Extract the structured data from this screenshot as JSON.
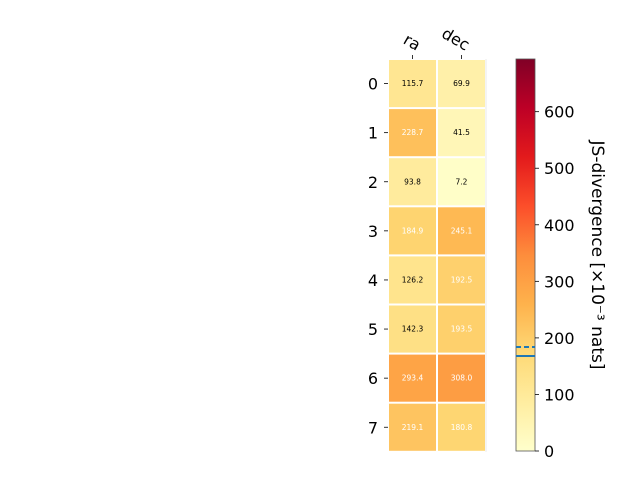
{
  "chart_data": {
    "type": "heatmap",
    "columns": [
      "ra",
      "dec"
    ],
    "rows": [
      "0",
      "1",
      "2",
      "3",
      "4",
      "5",
      "6",
      "7"
    ],
    "values": [
      [
        115.7,
        69.9
      ],
      [
        228.7,
        41.5
      ],
      [
        93.8,
        7.2
      ],
      [
        184.9,
        245.1
      ],
      [
        126.2,
        192.5
      ],
      [
        142.3,
        193.5
      ],
      [
        293.4,
        308.0
      ],
      [
        219.1,
        180.8
      ]
    ],
    "value_labels": [
      [
        "115.7",
        "69.9"
      ],
      [
        "228.7",
        "41.5"
      ],
      [
        "93.8",
        "7.2"
      ],
      [
        "184.9",
        "245.1"
      ],
      [
        "126.2",
        "192.5"
      ],
      [
        "142.3",
        "193.5"
      ],
      [
        "293.4",
        "308.0"
      ],
      [
        "219.1",
        "180.8"
      ]
    ],
    "colorbar": {
      "label": "JS-divergence [×10⁻³ nats]",
      "ticks": [
        "0",
        "100",
        "200",
        "300",
        "400",
        "500",
        "600"
      ],
      "range": [
        0,
        693.15
      ],
      "colormap": "YlOrRd",
      "reference_lines": [
        {
          "value": 184,
          "style": "dashed",
          "color": "#1f77b4"
        },
        {
          "value": 168,
          "style": "solid",
          "color": "#1f77b4"
        }
      ]
    }
  }
}
